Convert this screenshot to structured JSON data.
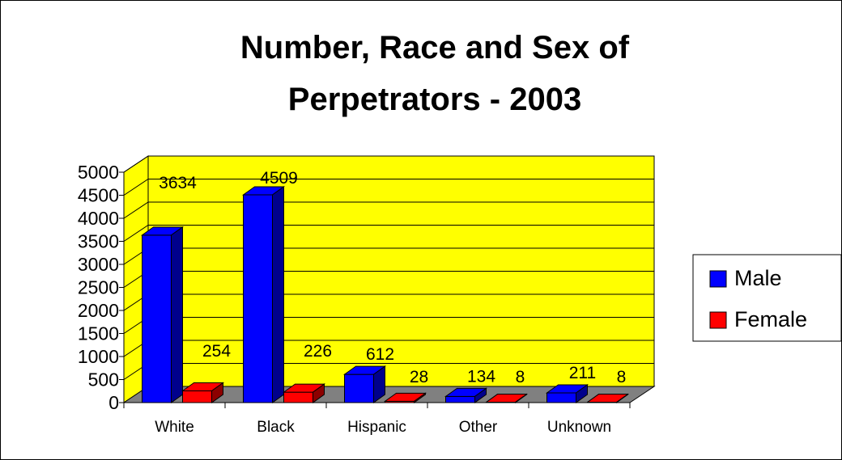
{
  "chart_data": {
    "type": "bar",
    "title_lines": [
      "Number, Race and Sex of",
      "Perpetrators - 2003"
    ],
    "categories": [
      "White",
      "Black",
      "Hispanic",
      "Other",
      "Unknown"
    ],
    "series": [
      {
        "name": "Male",
        "values": [
          3634,
          4509,
          612,
          134,
          211
        ],
        "color": "#0000ff"
      },
      {
        "name": "Female",
        "values": [
          254,
          226,
          28,
          8,
          8
        ],
        "color": "#ff0000"
      }
    ],
    "yticks": [
      "0",
      "500",
      "1000",
      "1500",
      "2000",
      "2500",
      "3000",
      "3500",
      "4000",
      "4500",
      "5000"
    ],
    "ylim": [
      0,
      5000
    ],
    "grid": true,
    "legend_position": "right",
    "wall_color": "#ffff00",
    "floor_color": "#808080"
  }
}
